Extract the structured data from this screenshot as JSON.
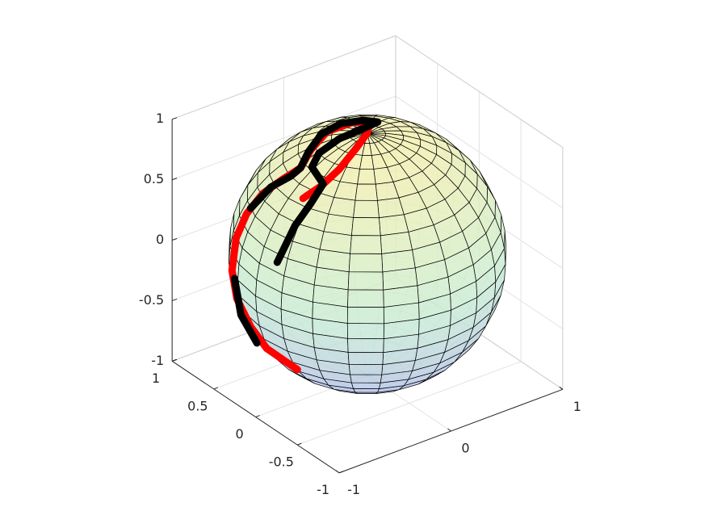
{
  "chart_data": {
    "type": "sphere-trajectory3d",
    "xlim": [
      -1,
      1
    ],
    "ylim": [
      -1,
      1
    ],
    "zlim": [
      -1,
      1
    ],
    "xticks": [
      -1,
      0,
      1
    ],
    "yticks": [
      -1,
      -0.5,
      0,
      0.5,
      1
    ],
    "zticks": [
      -1,
      -0.5,
      0,
      0.5,
      1
    ],
    "grid": true,
    "series": [
      {
        "color": "#ff0000",
        "x": [
          -0.779,
          -0.853,
          -0.912,
          -0.923,
          -0.921,
          -0.883,
          -0.818,
          -0.729,
          -0.629,
          -0.522,
          -0.369,
          -0.164,
          0.025,
          0.144,
          0.001,
          -0.184,
          -0.379,
          -0.534,
          -0.661
        ],
        "y": [
          -0.204,
          0.064,
          0.177,
          0.328,
          0.389,
          0.39,
          0.353,
          0.278,
          0.172,
          0.102,
          0.18,
          0.263,
          0.227,
          0.164,
          0.002,
          -0.101,
          -0.169,
          -0.166,
          -0.113
        ],
        "z": [
          -0.59,
          -0.514,
          -0.366,
          -0.199,
          0.005,
          0.258,
          0.453,
          0.625,
          0.759,
          0.847,
          0.911,
          0.95,
          0.974,
          0.976,
          1.0,
          0.977,
          0.911,
          0.829,
          0.742
        ]
      },
      {
        "color": "#000000",
        "x": [
          -0.942,
          -0.856,
          -0.824,
          null,
          -0.798,
          -0.689,
          -0.592,
          -0.522,
          -0.395,
          -0.208,
          -0.027,
          0.12,
          0.183,
          0.007,
          -0.186,
          -0.372,
          -0.48,
          -0.52,
          -0.65,
          -0.786,
          -0.929
        ],
        "y": [
          0.331,
          0.369,
          0.22,
          null,
          0.331,
          0.235,
          0.122,
          0.102,
          0.177,
          0.271,
          0.282,
          0.208,
          0.121,
          0.076,
          0.089,
          0.083,
          0.023,
          -0.166,
          -0.193,
          -0.183,
          -0.163
        ],
        "z": [
          -0.027,
          -0.376,
          -0.551,
          null,
          0.503,
          0.685,
          0.796,
          0.847,
          0.902,
          0.941,
          0.96,
          0.97,
          0.975,
          0.997,
          0.978,
          0.925,
          0.876,
          0.838,
          0.735,
          0.59,
          0.33
        ]
      }
    ]
  }
}
